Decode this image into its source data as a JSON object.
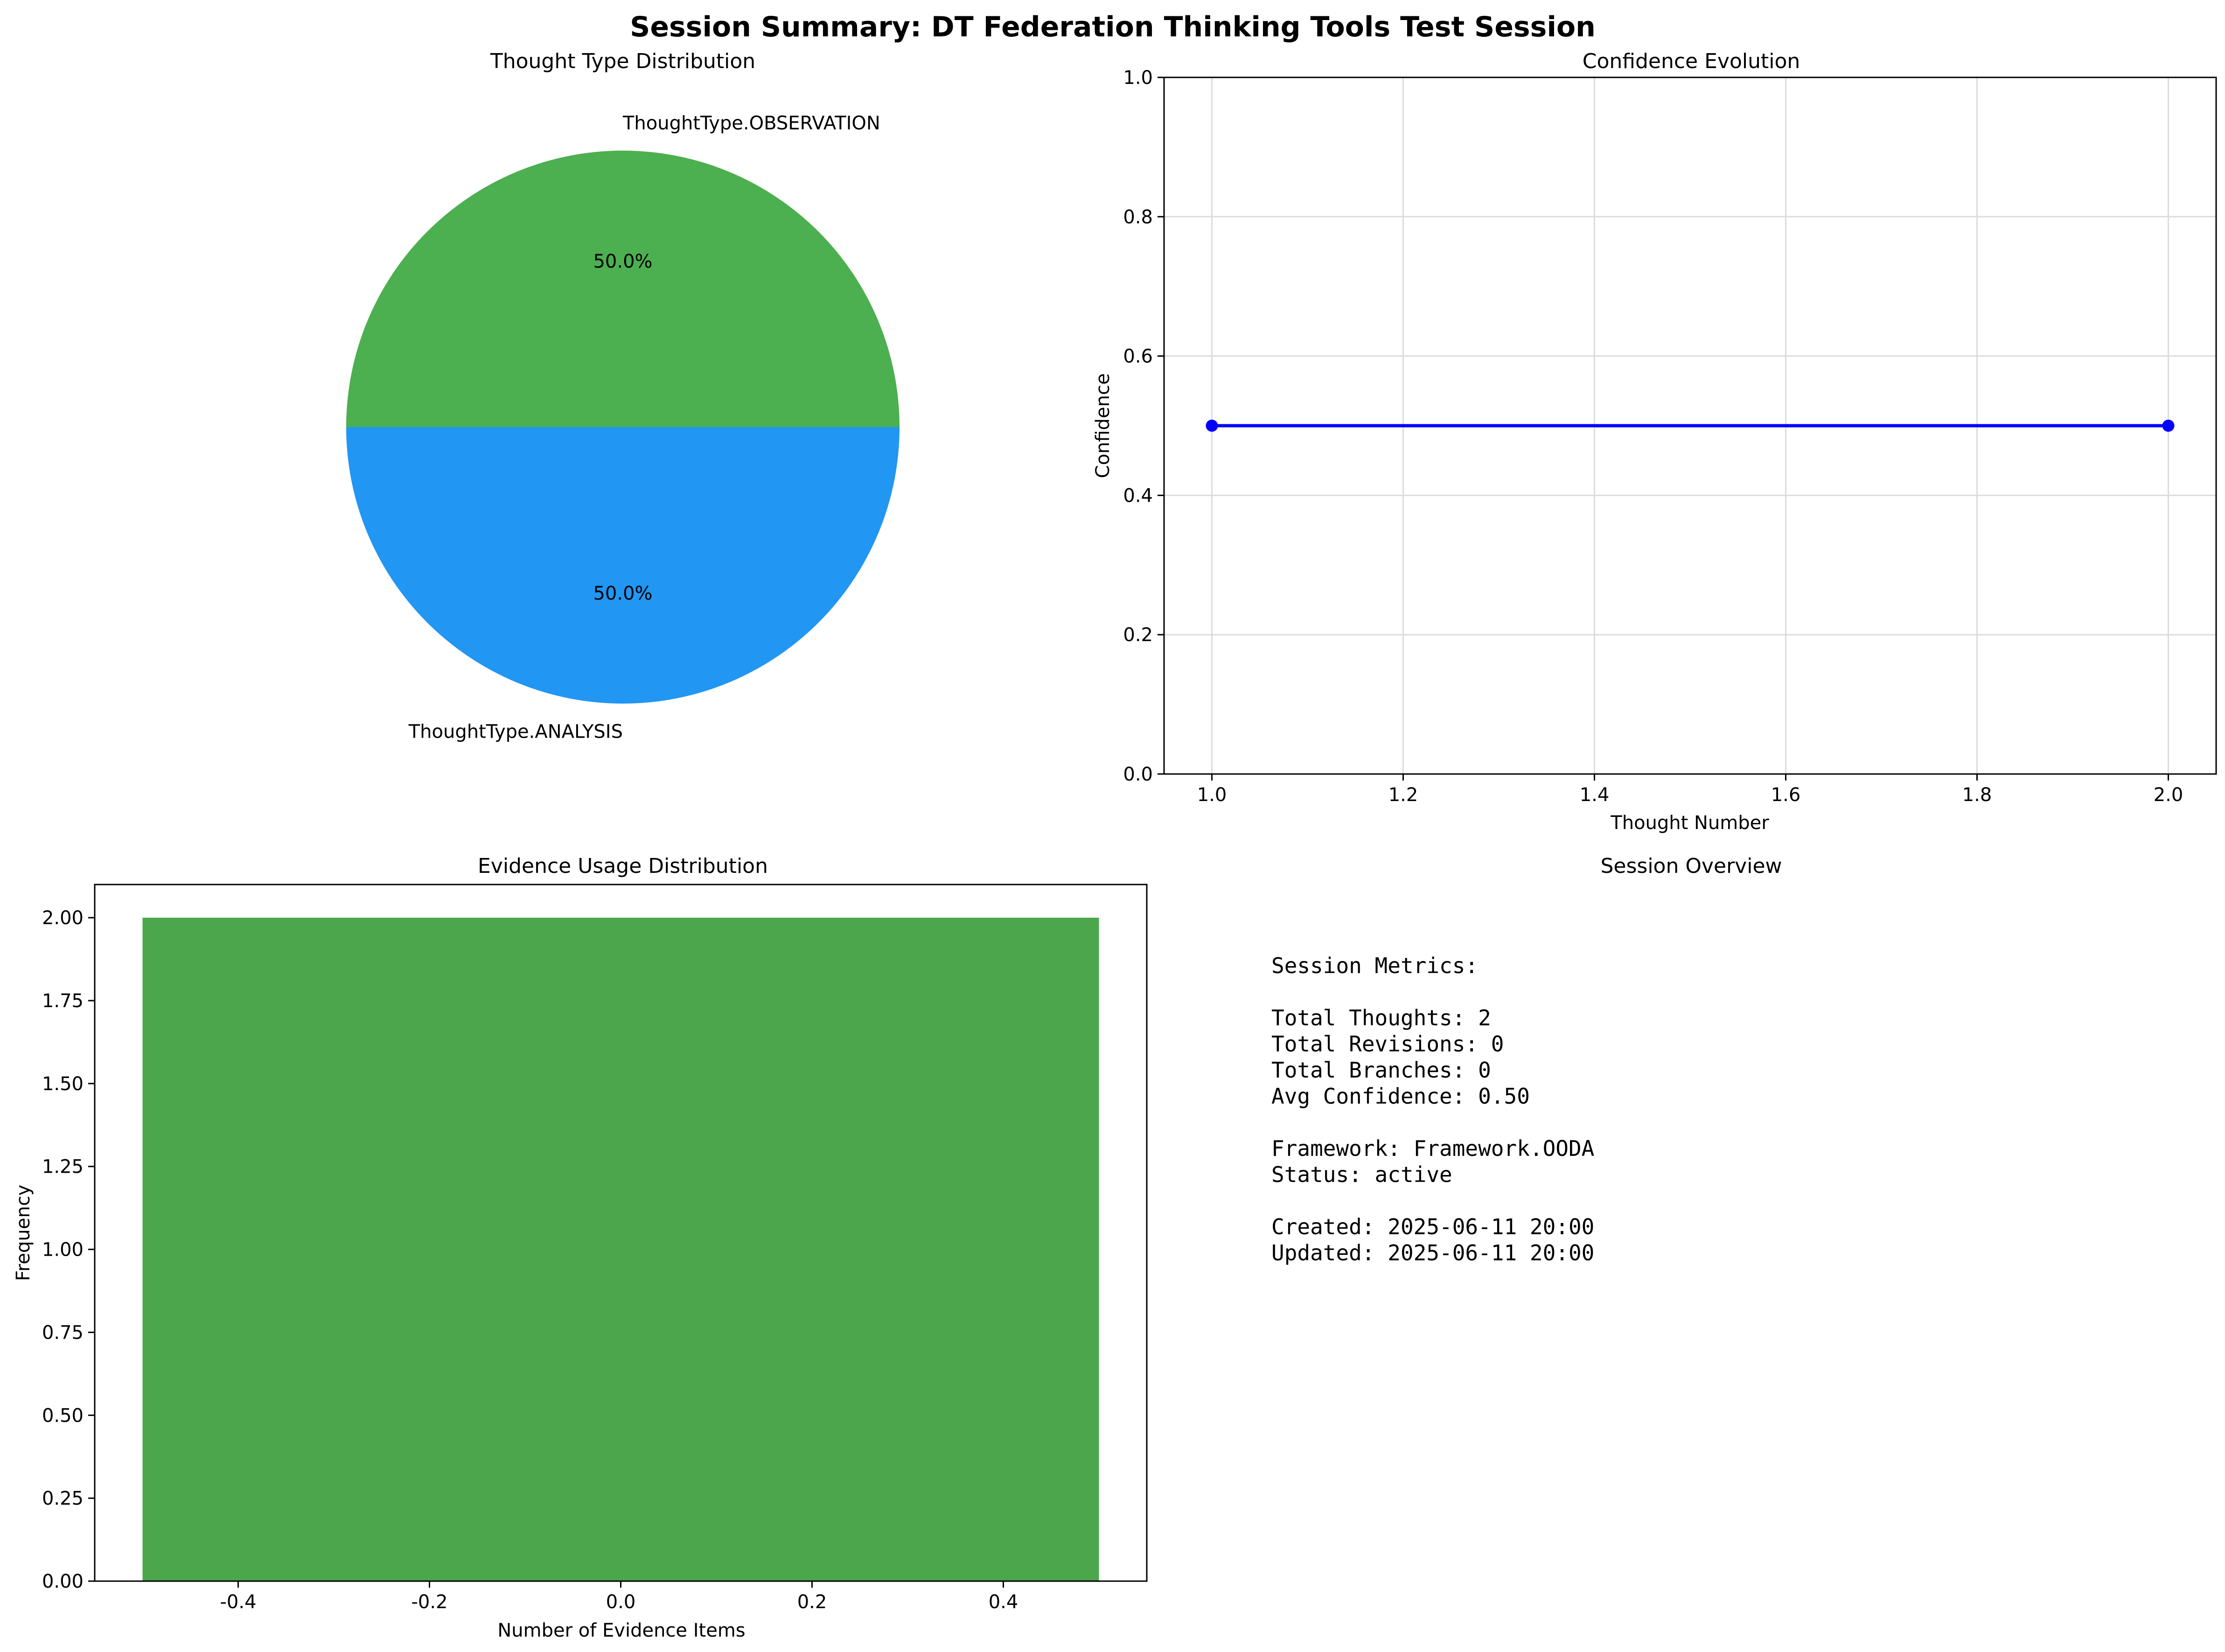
{
  "suptitle": "Session Summary: DT Federation Thinking Tools Test Session",
  "chart_data": [
    {
      "id": "pie",
      "type": "pie",
      "title": "Thought Type Distribution",
      "labels": [
        "ThoughtType.OBSERVATION",
        "ThoughtType.ANALYSIS"
      ],
      "values": [
        1,
        1
      ],
      "autopct": [
        "50.0%",
        "50.0%"
      ],
      "colors": [
        "#4caf50",
        "#2196f3"
      ]
    },
    {
      "id": "line",
      "type": "line",
      "title": "Confidence Evolution",
      "xlabel": "Thought Number",
      "ylabel": "Confidence",
      "x": [
        1,
        2
      ],
      "y": [
        0.5,
        0.5
      ],
      "xlim": [
        0.95,
        2.05
      ],
      "ylim": [
        0,
        1
      ],
      "xticks": [
        "1.0",
        "1.2",
        "1.4",
        "1.6",
        "1.8",
        "2.0"
      ],
      "yticks": [
        "0.0",
        "0.2",
        "0.4",
        "0.6",
        "0.8",
        "1.0"
      ],
      "color": "#0000ff",
      "grid": true
    },
    {
      "id": "hist",
      "type": "bar",
      "title": "Evidence Usage Distribution",
      "xlabel": "Number of Evidence Items",
      "ylabel": "Frequency",
      "bins": [
        {
          "x0": -0.5,
          "x1": 0.5,
          "value": 2
        }
      ],
      "xlim": [
        -0.55,
        0.55
      ],
      "ylim": [
        0,
        2.1
      ],
      "xticks": [
        "-0.4",
        "-0.2",
        "0.0",
        "0.2",
        "0.4"
      ],
      "yticks": [
        "0.00",
        "0.25",
        "0.50",
        "0.75",
        "1.00",
        "1.25",
        "1.50",
        "1.75",
        "2.00"
      ],
      "color": "#4ca64c",
      "grid": false
    }
  ],
  "overview": {
    "title": "Session Overview",
    "lines": [
      "Session Metrics:",
      "",
      "Total Thoughts: 2",
      "Total Revisions: 0",
      "Total Branches: 0",
      "Avg Confidence: 0.50",
      "",
      "Framework: Framework.OODA",
      "Status: active",
      "",
      "Created: 2025-06-11 20:00",
      "Updated: 2025-06-11 20:00"
    ]
  }
}
